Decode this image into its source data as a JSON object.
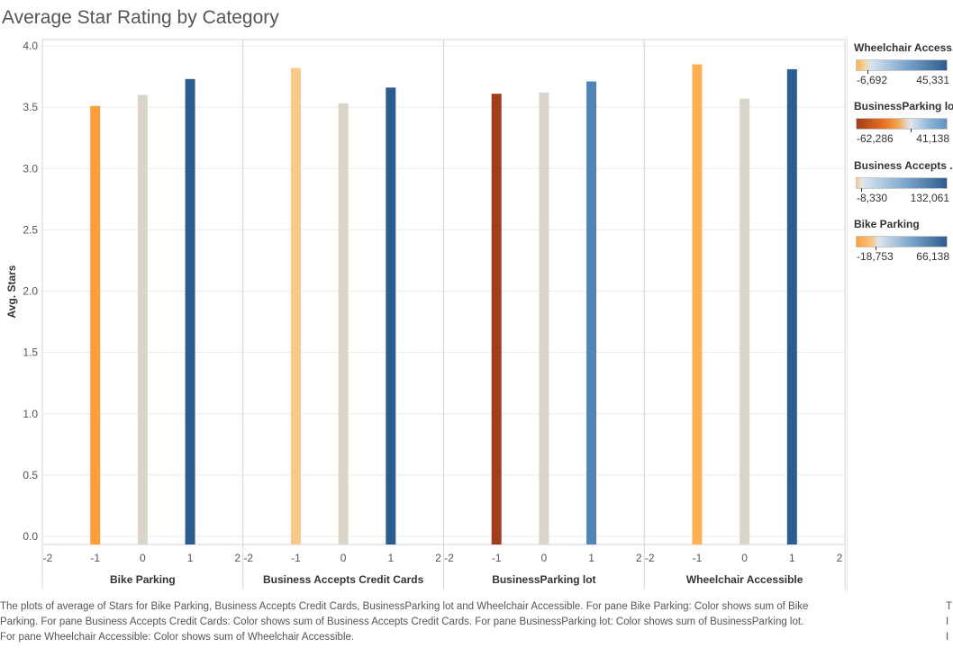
{
  "title": "Average Star Rating by Category",
  "chart_data": {
    "type": "bar",
    "ylabel": "Avg. Stars",
    "ylim": [
      0,
      4
    ],
    "yticks": [
      "0.0",
      "0.5",
      "1.0",
      "1.5",
      "2.0",
      "2.5",
      "3.0",
      "3.5",
      "4.0"
    ],
    "xticks": [
      "-2",
      "-1",
      "0",
      "1",
      "2"
    ],
    "panes": [
      {
        "name": "Bike Parking",
        "x": [
          -1,
          0,
          1
        ],
        "values": [
          3.51,
          3.6,
          3.73
        ],
        "colors": [
          "#fb9f3b",
          "#d9d5c9",
          "#2d5d8e"
        ]
      },
      {
        "name": "Business Accepts Credit Cards",
        "x": [
          -1,
          0,
          1
        ],
        "values": [
          3.82,
          3.53,
          3.66
        ],
        "colors": [
          "#f8c98b",
          "#d9d5c9",
          "#2d5d8e"
        ]
      },
      {
        "name": "BusinessParking lot",
        "x": [
          -1,
          0,
          1
        ],
        "values": [
          3.61,
          3.62,
          3.71
        ],
        "colors": [
          "#a23d1e",
          "#d9d5c9",
          "#4f85b8"
        ]
      },
      {
        "name": "Wheelchair Accessible",
        "x": [
          -1,
          0,
          1
        ],
        "values": [
          3.85,
          3.57,
          3.81
        ],
        "colors": [
          "#fbb053",
          "#d9d5c9",
          "#2d5d8e"
        ]
      }
    ]
  },
  "legends": [
    {
      "title": "Wheelchair Access..",
      "min": "-6,692",
      "max": "45,331",
      "gradient": "linear-gradient(to right, #fbb053 0%, #f4d7a8 10%, #d6e4ef 16%, #7aa5cc 55%, #2d5d8e 100%)",
      "tick": 0.13
    },
    {
      "title": "BusinessParking lot",
      "min": "-62,286",
      "max": "41,138",
      "gradient": "linear-gradient(to right, #a23d1e 0%, #e8701f 30%, #f5a24b 45%, #dde6ee 60%, #8fb6d8 80%, #5f93c4 100%)",
      "tick": 0.6
    },
    {
      "title": "Business Accepts ..",
      "min": "-8,330",
      "max": "132,061",
      "gradient": "linear-gradient(to right, #f8c98b 0%, #e6e6e6 6%, #cfe0ee 12%, #7aa5cc 55%, #2d5d8e 100%)",
      "tick": 0.06
    },
    {
      "title": "Bike Parking",
      "min": "-18,753",
      "max": "66,138",
      "gradient": "linear-gradient(to right, #fb9f3b 0%, #f8c98b 18%, #dfe6ee 24%, #7aa5cc 60%, #2d5d8e 100%)",
      "tick": 0.22
    }
  ],
  "caption": [
    "The plots of average of Stars for Bike Parking, Business Accepts Credit Cards, BusinessParking lot and Wheelchair Accessible.  For pane Bike Parking:  Color shows sum of Bike",
    "Parking.  For pane Business Accepts Credit Cards:  Color shows sum of Business Accepts Credit Cards.  For pane BusinessParking lot:  Color shows sum of BusinessParking lot.",
    "For pane Wheelchair Accessible:  Color shows sum of Wheelchair Accessible."
  ],
  "edge_glyphs": [
    "T",
    "I",
    "I"
  ]
}
